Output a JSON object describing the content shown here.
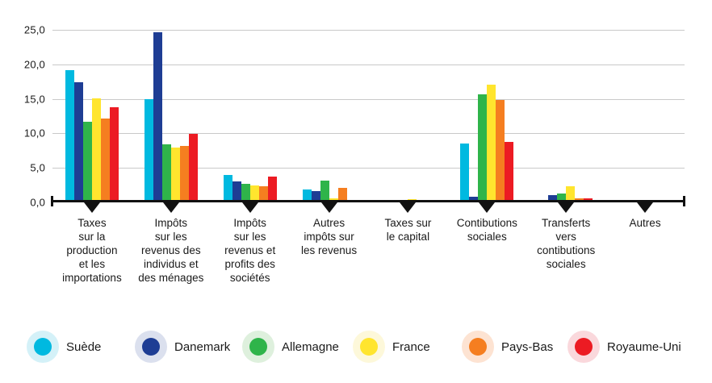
{
  "chart_data": {
    "type": "bar",
    "title": "",
    "xlabel": "",
    "ylabel": "",
    "ylim": [
      0,
      25
    ],
    "grid": true,
    "legend_position": "bottom",
    "ytick_labels": [
      "25,0",
      "20,0",
      "15,0",
      "10,0",
      "5,0",
      "0,0"
    ],
    "categories": [
      "Taxes\nsur la\nproduction\net les\nimportations",
      "Impôts\nsur les\nrevenus des\nindividus et\ndes ménages",
      "Impôts\nsur les\nrevenus et\nprofits des\nsociétés",
      "Autres\nimpôts sur\nles revenus",
      "Taxes sur\nle capital",
      "Contibutions\nsociales",
      "Transferts\nvers\ncontibutions\nsociales",
      "Autres"
    ],
    "series": [
      {
        "name": "Suède",
        "color": "#00b9e0",
        "halo_color": "#d4f1f8",
        "values": [
          19.2,
          14.9,
          4.0,
          1.9,
          0.0,
          8.5,
          0.3,
          0.0
        ]
      },
      {
        "name": "Danemark",
        "color": "#1e3d94",
        "halo_color": "#dbe0ee",
        "values": [
          17.4,
          24.7,
          3.0,
          1.6,
          0.3,
          0.8,
          1.0,
          0.3
        ]
      },
      {
        "name": "Allemagne",
        "color": "#2fb44a",
        "halo_color": "#def0dd",
        "values": [
          11.7,
          8.4,
          2.7,
          3.1,
          0.2,
          15.7,
          1.3,
          0.0
        ]
      },
      {
        "name": "France",
        "color": "#ffe52e",
        "halo_color": "#fdf8da",
        "values": [
          15.1,
          7.9,
          2.5,
          0.6,
          0.5,
          17.0,
          2.3,
          0.4
        ]
      },
      {
        "name": "Pays-Bas",
        "color": "#f57e20",
        "halo_color": "#fde3d2",
        "values": [
          12.2,
          8.2,
          2.3,
          2.1,
          0.3,
          14.8,
          0.6,
          0.0
        ]
      },
      {
        "name": "Royaume-Uni",
        "color": "#ec1b23",
        "halo_color": "#fad8dc",
        "values": [
          13.8,
          9.9,
          3.7,
          0.4,
          0.2,
          8.8,
          0.6,
          0.0
        ]
      }
    ]
  }
}
